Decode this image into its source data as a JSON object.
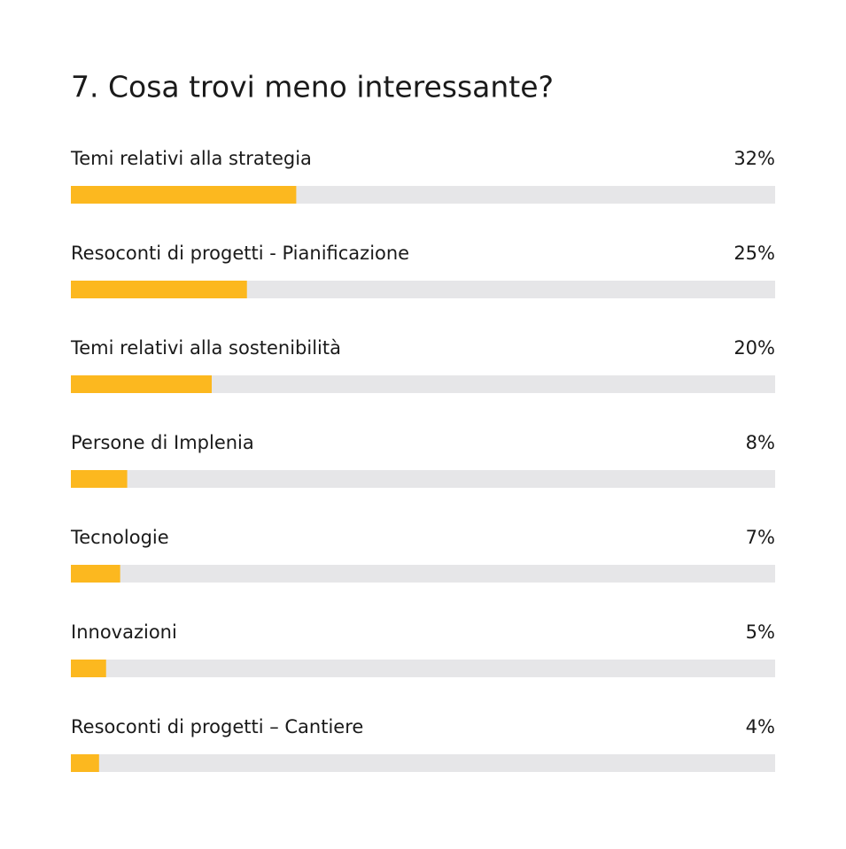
{
  "chart_data": {
    "type": "bar",
    "orientation": "horizontal",
    "title": "7. Cosa trovi meno interessante?",
    "categories": [
      "Temi relativi alla strategia",
      "Resoconti di progetti - Pianificazione",
      "Temi relativi alla sostenibilità",
      "Persone di Implenia",
      "Tecnologie",
      "Innovazioni",
      "Resoconti di progetti – Cantiere"
    ],
    "values": [
      32,
      25,
      20,
      8,
      7,
      5,
      4
    ],
    "value_labels": [
      "32%",
      "25%",
      "20%",
      "8%",
      "7%",
      "5%",
      "4%"
    ],
    "color": "#fcb81f",
    "track_color": "#e6e6e8",
    "xlim": [
      0,
      100
    ]
  }
}
